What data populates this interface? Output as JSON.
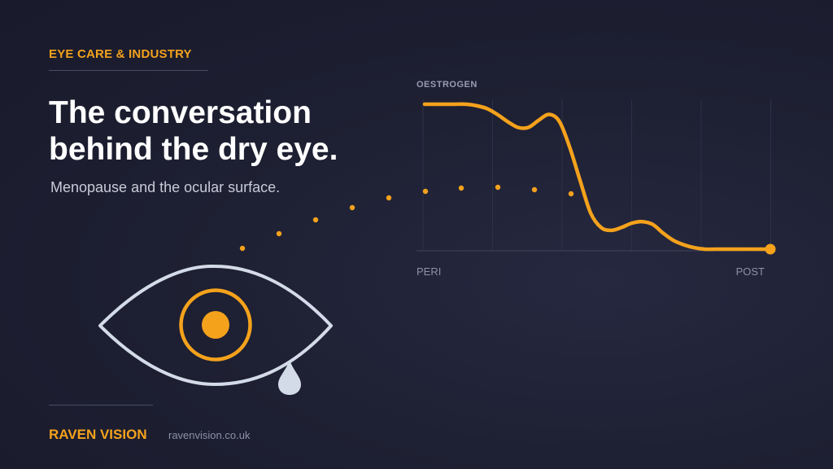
{
  "kicker": "EYE CARE & INDUSTRY",
  "headline": {
    "line1": "The conversation",
    "line2": "behind the dry eye."
  },
  "subhead": "Menopause and the ocular surface.",
  "chart_data": {
    "type": "line",
    "title": "",
    "ylabel": "OESTROGEN",
    "x_start_label": "PERI",
    "x_end_label": "POST",
    "ylim": [
      0,
      1
    ],
    "grid": "vertical",
    "series": [
      {
        "x": [
          0,
          0.03,
          0.06,
          0.09,
          0.12,
          0.15,
          0.18,
          0.21,
          0.24,
          0.27,
          0.3,
          0.33,
          0.36,
          0.39,
          0.42,
          0.45,
          0.48,
          0.51,
          0.54,
          0.57,
          0.6,
          0.63,
          0.66,
          0.69,
          0.72,
          0.75,
          0.78,
          0.81,
          0.84,
          0.87,
          0.9,
          0.93,
          0.96,
          1.0
        ],
        "y": [
          1.0,
          1.0,
          1.0,
          1.0,
          1.0,
          0.99,
          0.97,
          0.93,
          0.88,
          0.84,
          0.84,
          0.89,
          0.93,
          0.88,
          0.7,
          0.47,
          0.25,
          0.15,
          0.13,
          0.15,
          0.18,
          0.19,
          0.17,
          0.11,
          0.06,
          0.03,
          0.01,
          0.0,
          0.0,
          0.0,
          0.0,
          0.0,
          0.0,
          0.0
        ]
      }
    ]
  },
  "colors": {
    "background": "#1c1d2e",
    "accent": "#f4a21c",
    "headline": "#ffffff",
    "muted": "#8e90a6",
    "eye_outline": "#d4dbe8",
    "tear": "#d4dbe8"
  },
  "icons": {
    "eye": "eye-icon",
    "tear": "tear-drop-icon",
    "dots": "dotted-trail"
  },
  "brand": "RAVEN VISION",
  "site": "ravenvision.co.uk"
}
